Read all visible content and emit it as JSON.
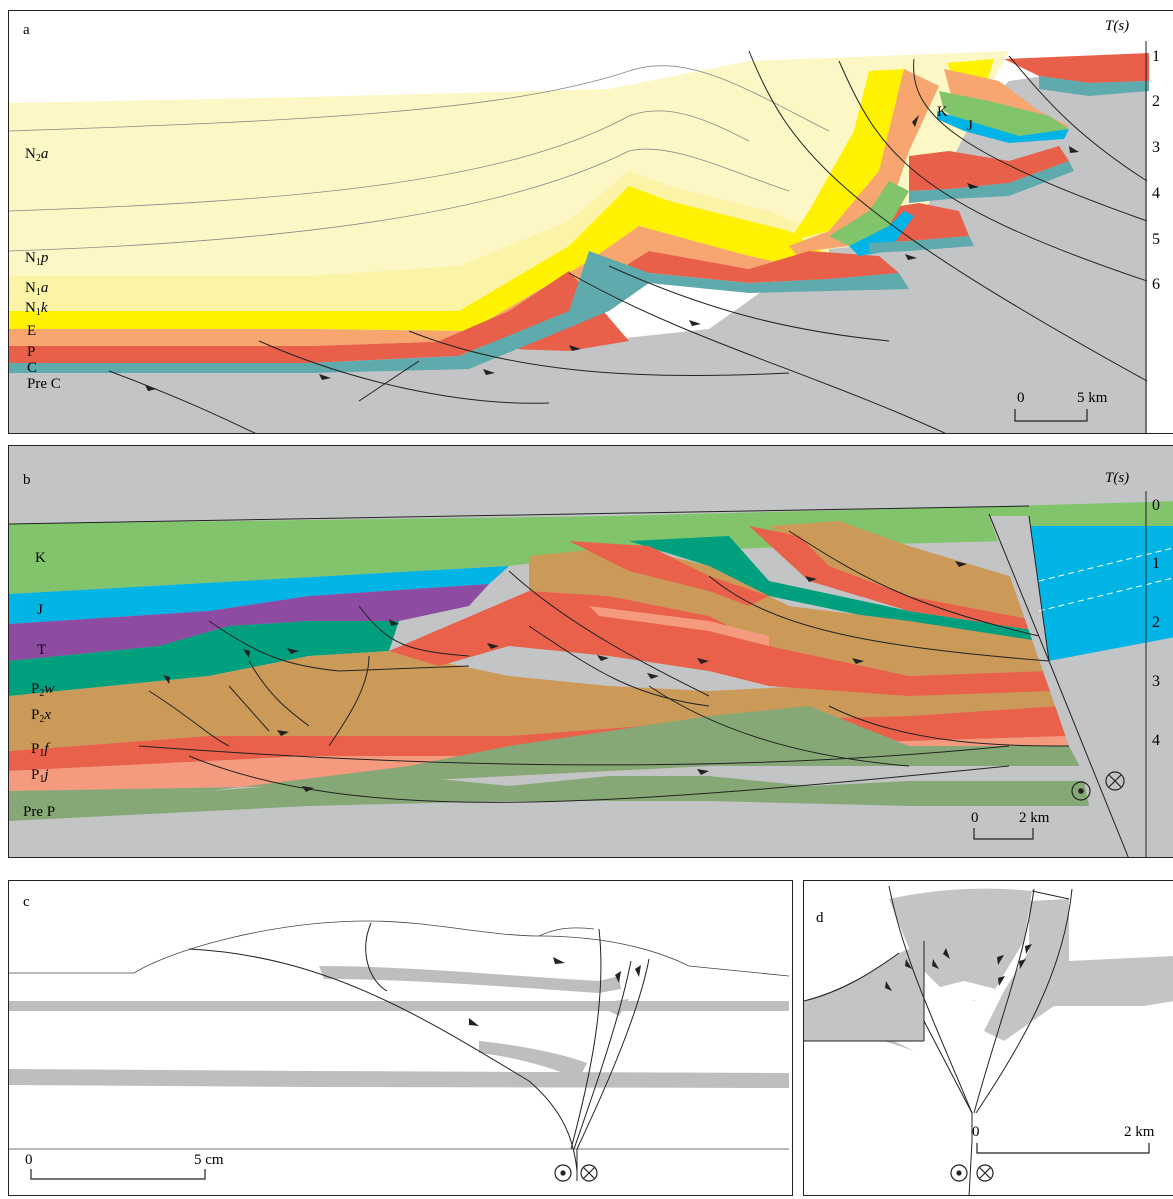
{
  "panels": {
    "a": {
      "label": "a",
      "axis_title": "T(s)",
      "ticks": [
        "1",
        "2",
        "3",
        "4",
        "5",
        "6"
      ],
      "units": [
        {
          "base": "N",
          "sub": "2",
          "ital": "a"
        },
        {
          "base": "N",
          "sub": "1",
          "ital": "p"
        },
        {
          "base": "N",
          "sub": "1",
          "ital": "a"
        },
        {
          "base": "N",
          "sub": "1",
          "ital": "k"
        },
        {
          "text": "E"
        },
        {
          "text": "P"
        },
        {
          "text": "C"
        },
        {
          "text": "Pre C"
        }
      ],
      "inset_labels": [
        "K",
        "J"
      ],
      "scale": {
        "zero": "0",
        "end": "5 km"
      }
    },
    "b": {
      "label": "b",
      "axis_title": "T(s)",
      "ticks": [
        "0",
        "1",
        "2",
        "3",
        "4"
      ],
      "units": [
        {
          "text": "K"
        },
        {
          "text": "J"
        },
        {
          "text": "T"
        },
        {
          "base": "P",
          "sub": "2",
          "ital": "w"
        },
        {
          "base": "P",
          "sub": "2",
          "ital": "x"
        },
        {
          "base": "P",
          "sub": "1",
          "ital": "f"
        },
        {
          "base": "P",
          "sub": "1",
          "ital": "j"
        },
        {
          "text": "Pre P"
        }
      ],
      "scale": {
        "zero": "0",
        "end": "2 km"
      }
    },
    "c": {
      "label": "c",
      "scale": {
        "zero": "0",
        "end": "5 cm"
      }
    },
    "d": {
      "label": "d",
      "scale": {
        "zero": "0",
        "end": "2 km"
      }
    }
  },
  "colors": {
    "n2a": "#fcf7c4",
    "n1p": "#fbf3a6",
    "n1a": "#faee6e",
    "n1k": "#fff200",
    "e": "#f6a66e",
    "p": "#e8604a",
    "c": "#5eaaac",
    "prec": "#c3c4c6",
    "k": "#82c46c",
    "j": "#00b4e6",
    "t": "#8d4ca2",
    "p2w": "#00a07e",
    "p2x": "#cc9a58",
    "p1f_red": "#e9614a",
    "p1f_pink": "#f39a7f",
    "p1j": "#86a877",
    "gray": "#c3c4c6",
    "band": "#bdbec0"
  }
}
